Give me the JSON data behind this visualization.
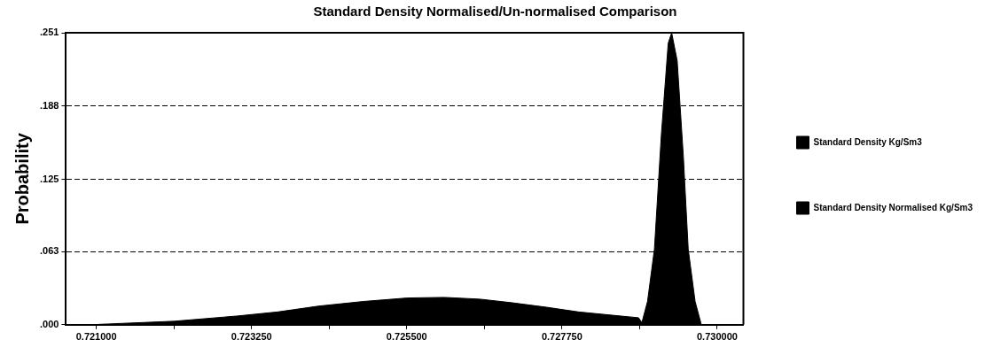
{
  "chart_data": {
    "type": "area",
    "title": "Standard Density Normalised/Un-normalised Comparison",
    "ylabel": "Probability",
    "xlim": [
      0.72056,
      0.73038
    ],
    "ylim": [
      0,
      0.251
    ],
    "xticks": [
      {
        "value": 0.721,
        "label": "0.721000"
      },
      {
        "value": 0.722125,
        "label": null
      },
      {
        "value": 0.72325,
        "label": "0.723250"
      },
      {
        "value": 0.724375,
        "label": null
      },
      {
        "value": 0.7255,
        "label": "0.725500"
      },
      {
        "value": 0.726625,
        "label": null
      },
      {
        "value": 0.72775,
        "label": "0.727750"
      },
      {
        "value": 0.728875,
        "label": null
      },
      {
        "value": 0.73,
        "label": "0.730000"
      }
    ],
    "yticks": [
      {
        "value": 0,
        "label": ".000"
      },
      {
        "value": 0.063,
        "label": ".063"
      },
      {
        "value": 0.125,
        "label": ".125"
      },
      {
        "value": 0.188,
        "label": ".188"
      },
      {
        "value": 0.251,
        "label": ".251"
      }
    ],
    "grid": "y",
    "legend": "right",
    "line_style": "dashed",
    "series": [
      {
        "name": "Standard Density Kg/Sm3",
        "color": "#000000",
        "x": [
          0.721,
          0.72103,
          0.72213,
          0.72304,
          0.72363,
          0.72422,
          0.72487,
          0.72551,
          0.72604,
          0.72656,
          0.72701,
          0.72753,
          0.72799,
          0.72851,
          0.72886,
          0.72893
        ],
        "values": [
          0,
          0.0003,
          0.003,
          0.0075,
          0.011,
          0.016,
          0.02,
          0.023,
          0.0235,
          0.022,
          0.019,
          0.015,
          0.011,
          0.008,
          0.006,
          0
        ]
      },
      {
        "name": "Standard Density Normalised Kg/Sm3",
        "color": "#000000",
        "x": [
          0.7289,
          0.72899,
          0.72909,
          0.72919,
          0.72929,
          0.72934,
          0.72942,
          0.72951,
          0.72958,
          0.72968,
          0.72977
        ],
        "values": [
          0,
          0.02,
          0.065,
          0.163,
          0.242,
          0.251,
          0.227,
          0.144,
          0.065,
          0.02,
          0
        ]
      }
    ]
  }
}
